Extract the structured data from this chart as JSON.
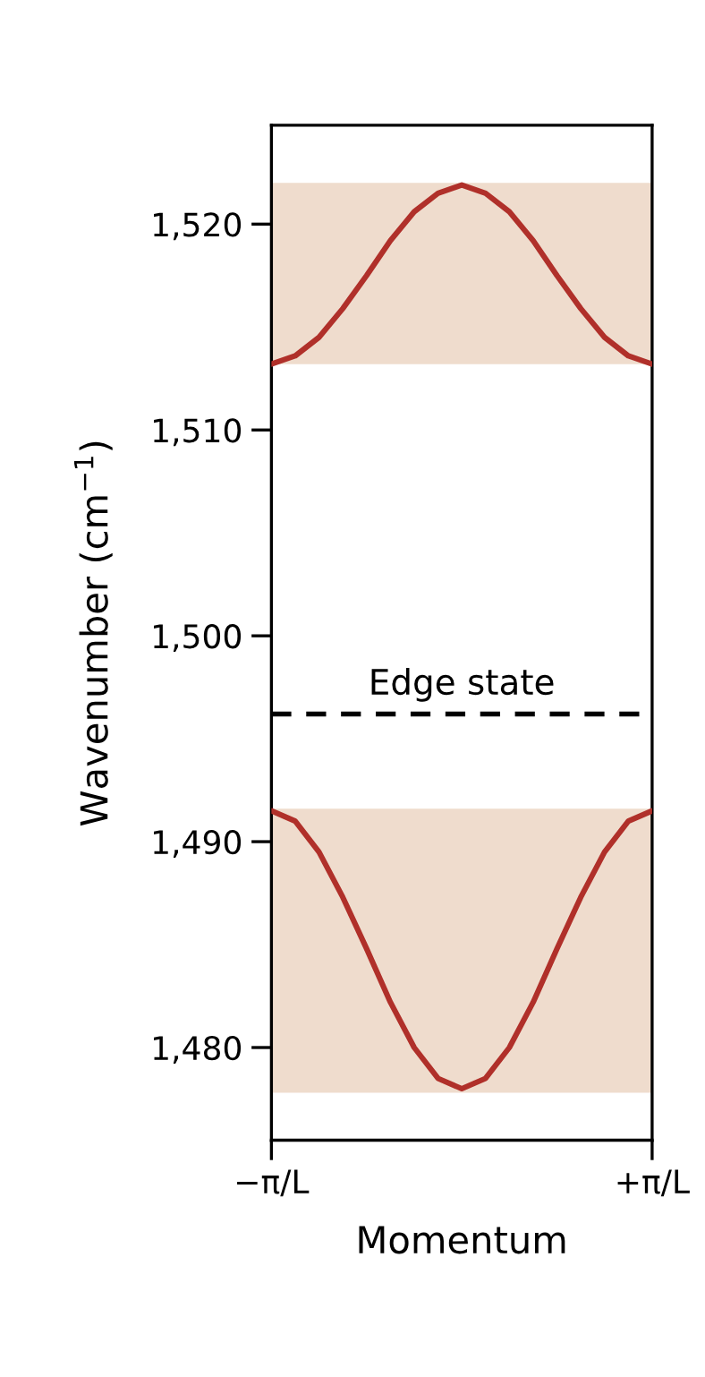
{
  "chart_data": {
    "type": "line",
    "xlabel": "Momentum",
    "ylabel": "Wavenumber (cm$^{−1}$)",
    "categories": [
      "−π/L",
      null,
      null,
      null,
      null,
      null,
      null,
      null,
      null,
      null,
      null,
      null,
      null,
      null,
      null,
      null,
      "+π/L"
    ],
    "series": [
      {
        "color": "#b0302a",
        "values": [
          1513.2,
          1513.6,
          1514.5,
          1515.9,
          1517.5,
          1519.2,
          1520.6,
          1521.5,
          1521.9,
          1521.5,
          1520.6,
          1519.2,
          1517.5,
          1515.9,
          1514.5,
          1513.6,
          1513.2
        ]
      },
      {
        "color": "#b0302a",
        "values": [
          1491.5,
          1491.0,
          1489.5,
          1487.3,
          1484.8,
          1482.2,
          1480.0,
          1478.5,
          1478.0,
          1478.5,
          1480.0,
          1482.2,
          1484.8,
          1487.3,
          1489.5,
          1491.0,
          1491.5
        ]
      }
    ],
    "ylim": [
      1475.5,
      1524.8
    ],
    "yticks": [
      {
        "value": 1480,
        "label": "1,480"
      },
      {
        "value": 1490,
        "label": "1,490"
      },
      {
        "value": 1500,
        "label": "1,500"
      },
      {
        "value": 1510,
        "label": "1,510"
      },
      {
        "value": 1520,
        "label": "1,520"
      }
    ],
    "bands": [
      {
        "axis": "y",
        "from": 1513.2,
        "to": 1522.0,
        "color": "#efdccd"
      },
      {
        "axis": "y",
        "from": 1477.8,
        "to": 1491.6,
        "color": "#efdccd"
      }
    ],
    "ref_lines": [
      {
        "axis": "y",
        "value": 1496.2,
        "label": "Edge state",
        "color": "#000000",
        "line_style": "dashed"
      }
    ],
    "line_style": "solid",
    "marker": "none",
    "grid": false,
    "legend": false
  }
}
